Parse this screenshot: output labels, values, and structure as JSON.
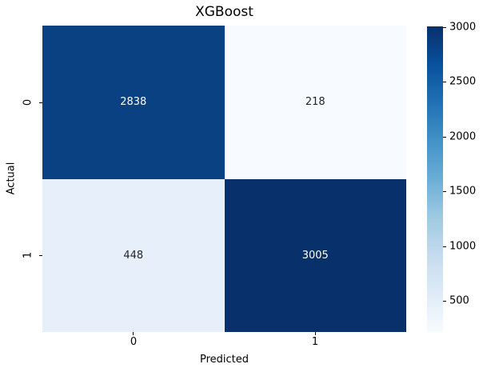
{
  "title": "XGBoost",
  "x_axis": {
    "label": "Predicted",
    "ticks": [
      "0",
      "1"
    ]
  },
  "y_axis": {
    "label": "Actual",
    "ticks": [
      "0",
      "1"
    ]
  },
  "chart_data": {
    "type": "heatmap",
    "title": "XGBoost",
    "xlabel": "Predicted",
    "ylabel": "Actual",
    "x_categories": [
      "0",
      "1"
    ],
    "y_categories": [
      "0",
      "1"
    ],
    "values": [
      [
        2838,
        218
      ],
      [
        448,
        3005
      ]
    ],
    "vmin": 218,
    "vmax": 3005,
    "colormap": "Blues",
    "grid": false,
    "legend_position": "right-colorbar",
    "colorbar": {
      "ticks": [
        {
          "value": 3000,
          "label": "3000"
        },
        {
          "value": 2500,
          "label": "2500"
        },
        {
          "value": 2000,
          "label": "2000"
        },
        {
          "value": 1500,
          "label": "1500"
        },
        {
          "value": 1000,
          "label": "1000"
        },
        {
          "value": 500,
          "label": "500"
        }
      ]
    }
  },
  "cells": [
    {
      "value": "2838",
      "bg": "#0a4182",
      "fg": "#ffffff"
    },
    {
      "value": "218",
      "bg": "#f7fbff",
      "fg": "#262626"
    },
    {
      "value": "448",
      "bg": "#e6effa",
      "fg": "#262626"
    },
    {
      "value": "3005",
      "bg": "#08306b",
      "fg": "#ffffff"
    }
  ],
  "colors": {
    "colormap_stops_top_to_bottom": [
      "#08306b",
      "#08519c",
      "#2171b5",
      "#4292c6",
      "#6baed6",
      "#9ecae1",
      "#c6dbef",
      "#deebf7",
      "#f7fbff"
    ],
    "annotation_light": "#ffffff",
    "annotation_dark": "#262626",
    "background": "#ffffff"
  }
}
